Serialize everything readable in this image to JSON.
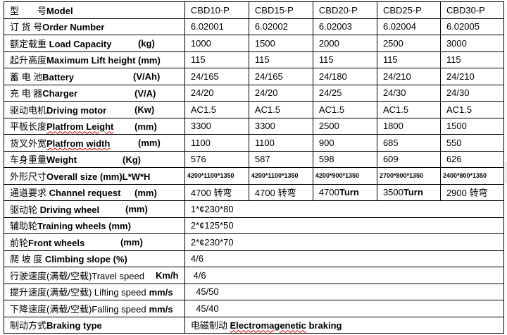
{
  "models": [
    "CBD10-P",
    "CBD15-P",
    "CBD20-P",
    "CBD25-P",
    "CBD30-P"
  ],
  "rows": [
    {
      "cn": "型　　号",
      "en": "Model",
      "unit": "",
      "values": [
        "CBD10-P",
        "CBD15-P",
        "CBD20-P",
        "CBD25-P",
        "CBD30-P"
      ]
    },
    {
      "cn": "订 货 号",
      "en": "Order Number",
      "unit": "",
      "values": [
        "6.02001",
        "6.02002",
        "6.02003",
        "6.02004",
        "6.02005"
      ]
    },
    {
      "cn": "额定载重",
      "en": " Load Capacity",
      "unit": "(kg)",
      "values": [
        "1000",
        "1500",
        "2000",
        "2500",
        "3000"
      ]
    },
    {
      "cn": "起升高度",
      "en": "Maximum Lift height (mm)",
      "unit": "",
      "values": [
        "115",
        "115",
        "115",
        "115",
        "115"
      ]
    },
    {
      "cn": "蓄 电 池",
      "en": "Battery",
      "unit": "(V/Ah)",
      "values": [
        "24/165",
        "24/165",
        "24/180",
        "24/210",
        "24/210"
      ]
    },
    {
      "cn": "充 电 器",
      "en": "Charger",
      "unit": "(V/A)",
      "values": [
        "24/20",
        "24/20",
        "24/25",
        "24/30",
        "24/30"
      ]
    },
    {
      "cn": "驱动电机",
      "en": "Driving motor",
      "unit": "(Kw)",
      "values": [
        "AC1.5",
        "AC1.5",
        "AC1.5",
        "AC1.5",
        "AC1.5"
      ]
    },
    {
      "cn": "平板长度",
      "en": "Platfrom Leight",
      "unit": "(mm)",
      "values": [
        "3300",
        "3300",
        "2500",
        "1800",
        "1500"
      ]
    },
    {
      "cn": "货叉外宽",
      "en": "Platfrom width",
      "unit": "(mm)",
      "values": [
        "1100",
        "1100",
        "900",
        "685",
        "550"
      ]
    },
    {
      "cn": "车身重量",
      "en": "Weight",
      "unit": "(Kg)",
      "values": [
        "576",
        "587",
        "598",
        "609",
        "626"
      ]
    },
    {
      "cn": "外形尺寸",
      "en": "Overall size (mm)L*W*H",
      "unit": "",
      "values": [
        "4200*1100*1350",
        "4200*1100*1350",
        "4200*900*1350",
        "2700*800*1350",
        "2400*800*1350"
      ]
    },
    {
      "cn": "通道要求",
      "en": " Channel request",
      "unit": "(mm)",
      "values": [
        "4700 转弯",
        "4700 转弯",
        "4700Turn",
        "3500Turn",
        "2900 转弯"
      ]
    },
    {
      "cn": "驱动轮 ",
      "en": " Driving wheel",
      "unit": "(mm)",
      "value": "1*¢230*80"
    },
    {
      "cn": "辅助轮",
      "en": "Training wheels (mm)",
      "unit": "",
      "value": "2*¢125*50"
    },
    {
      "cn": "前轮",
      "en": "Front wheels",
      "unit": "(mm)",
      "value": "2*¢230*70"
    },
    {
      "cn": "爬 坡 度",
      "en": " Climbing slope (%)",
      "unit": "",
      "value": "4/6"
    },
    {
      "cn": "行驶速度(满载/空载)Travel speed",
      "en": "",
      "unit": "Km/h",
      "value": " 4/6"
    },
    {
      "cn": "提升速度(满载/空载) Lifting speed",
      "en": "mm/s",
      "unit": "",
      "value": "  45/50"
    },
    {
      "cn": "下降速度(满载/空载)Falling speed",
      "en": "mm/s",
      "unit": "",
      "value": "  45/40"
    },
    {
      "cn": "制动方式",
      "en": "Braking type",
      "unit": "",
      "value_cn": "电磁制动 ",
      "value_en": "Electromagenetic braking"
    }
  ]
}
